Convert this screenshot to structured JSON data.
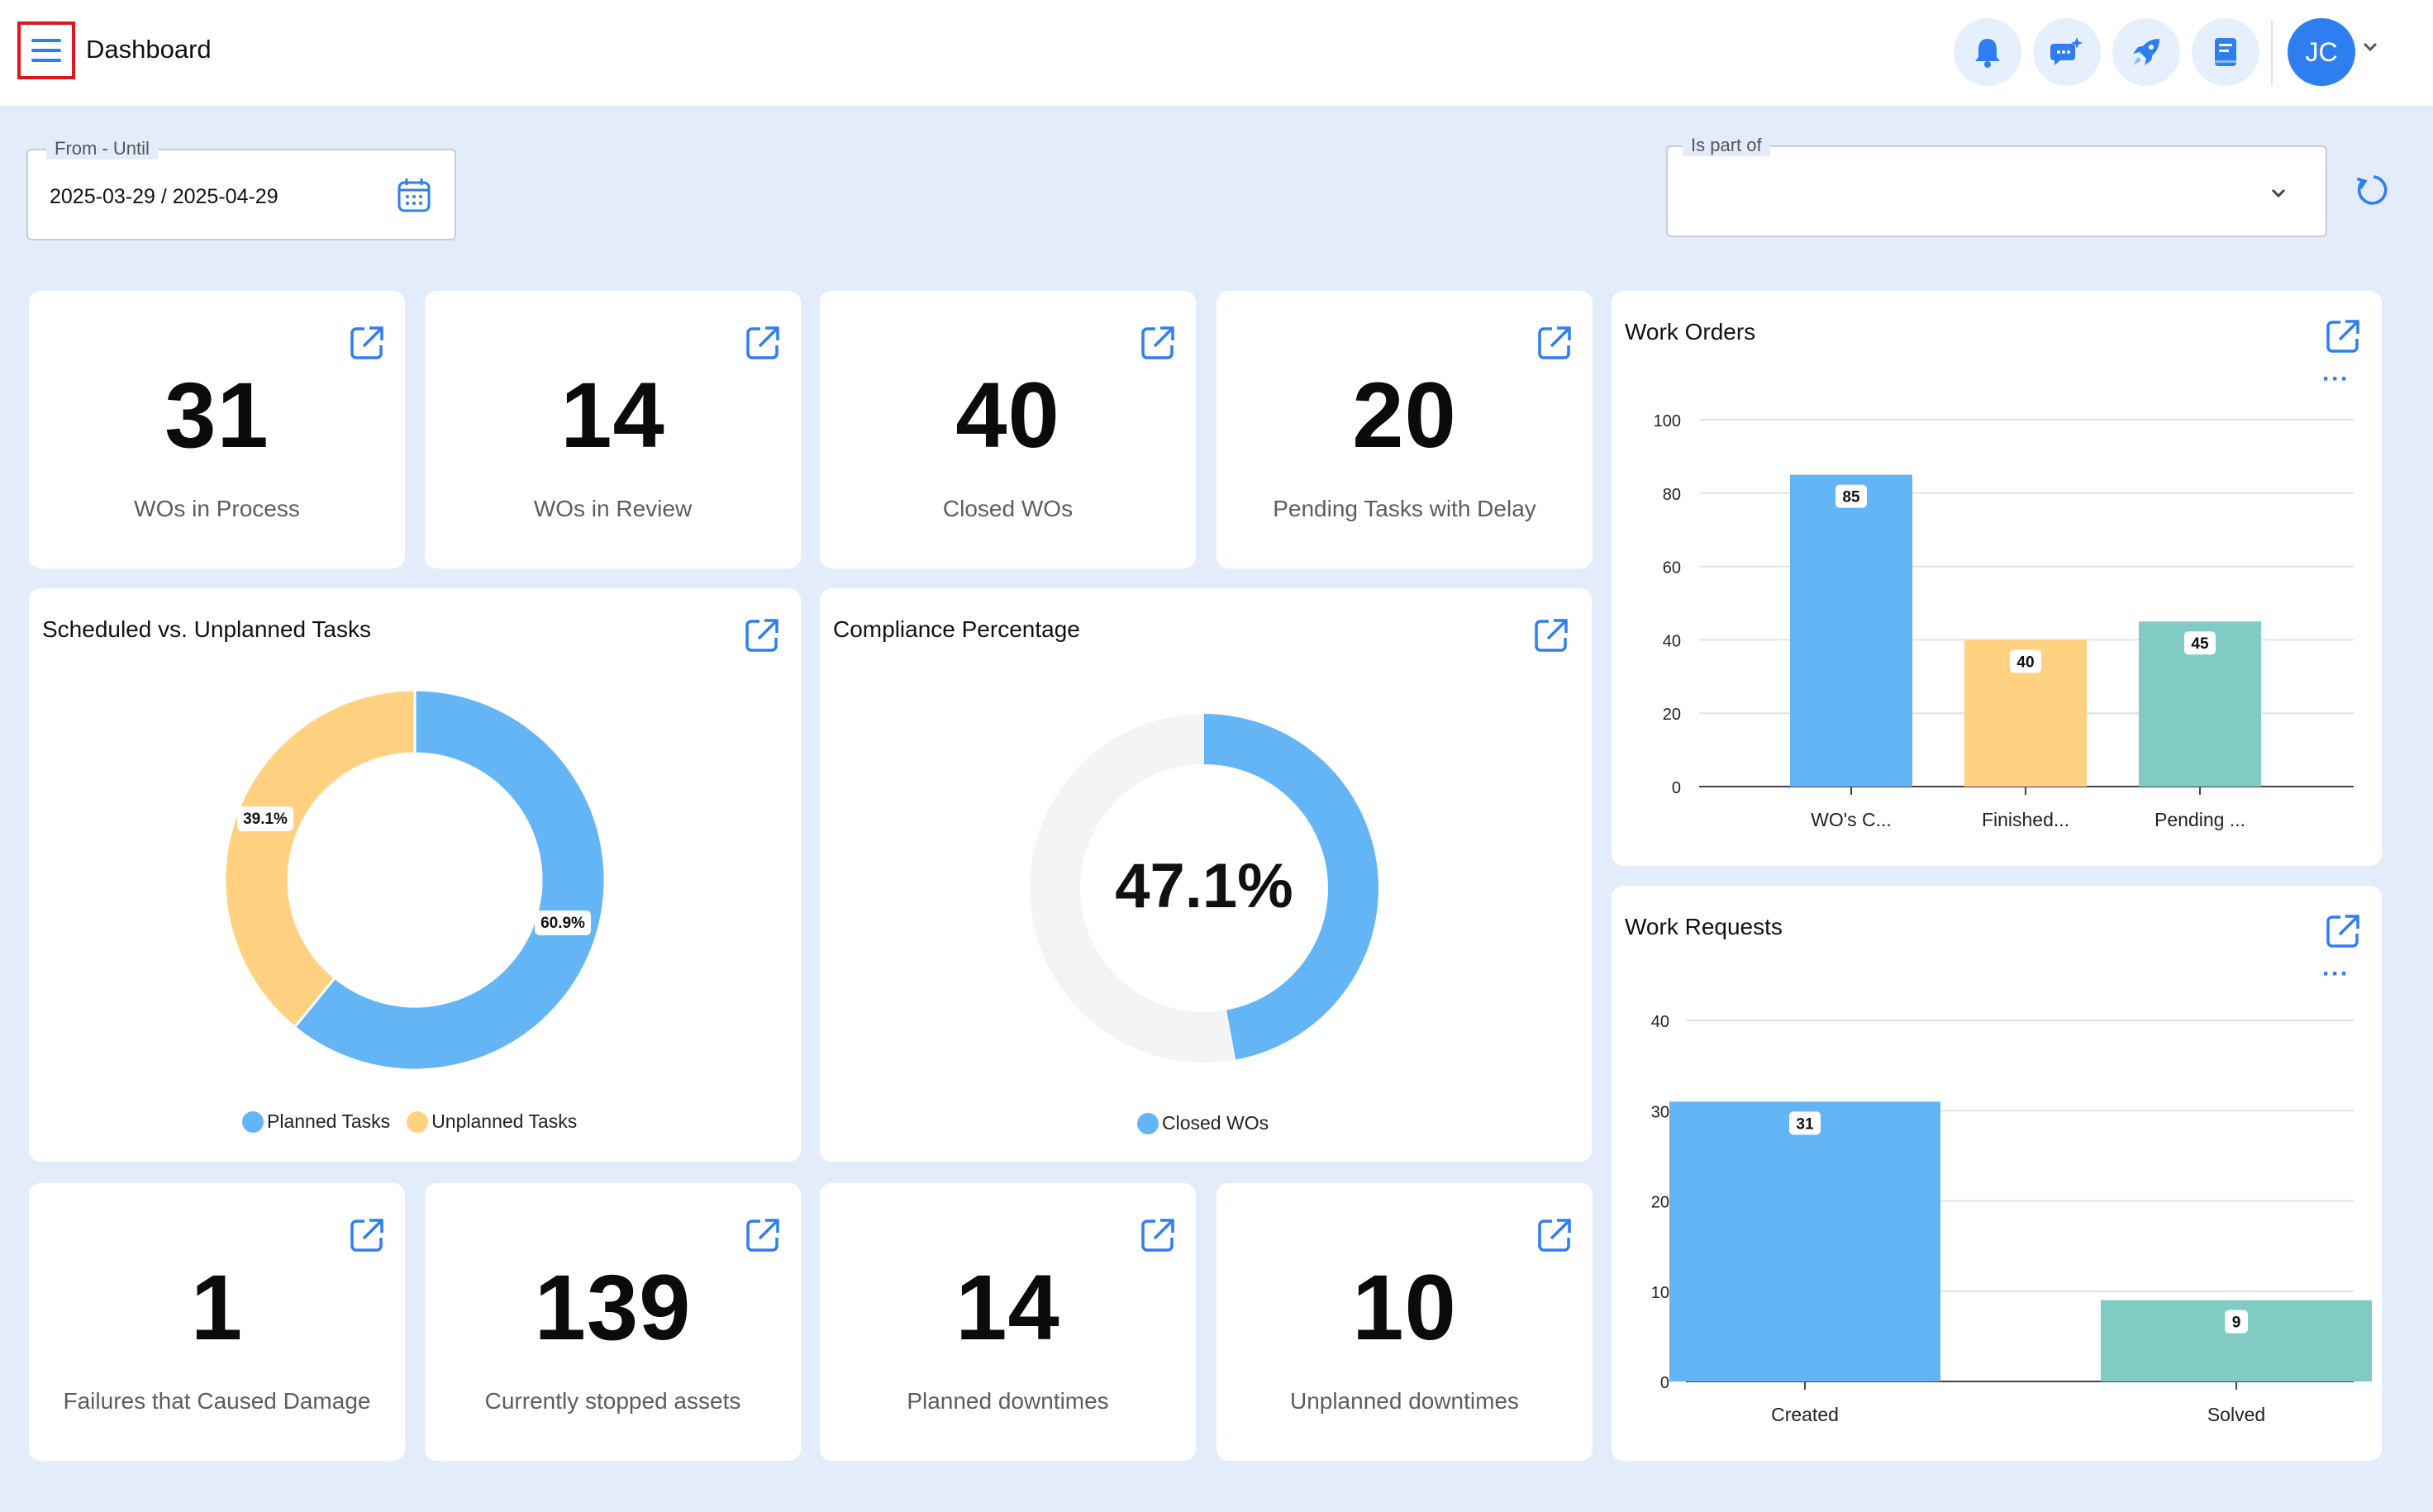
{
  "header": {
    "title": "Dashboard",
    "avatar_initials": "JC",
    "icons": [
      "menu-icon",
      "bell-icon",
      "chat-sparkle-icon",
      "rocket-icon",
      "book-icon",
      "chevron-down-icon"
    ]
  },
  "filters": {
    "date_label": "From - Until",
    "date_value": "2025-03-29 / 2025-04-29",
    "part_of_label": "Is part of",
    "part_of_value": ""
  },
  "kpis_top": [
    {
      "value": "31",
      "label": "WOs in Process"
    },
    {
      "value": "14",
      "label": "WOs in Review"
    },
    {
      "value": "40",
      "label": "Closed WOs"
    },
    {
      "value": "20",
      "label": "Pending Tasks with Delay"
    }
  ],
  "kpis_bottom": [
    {
      "value": "1",
      "label": "Failures that Caused Damage"
    },
    {
      "value": "139",
      "label": "Currently stopped assets"
    },
    {
      "value": "14",
      "label": "Planned downtimes"
    },
    {
      "value": "10",
      "label": "Unplanned downtimes"
    }
  ],
  "colors": {
    "blue": "#64b5f6",
    "yellow": "#ffd180",
    "teal": "#80cbc4",
    "accent": "#2f7ef0",
    "track": "#f4f4f4"
  },
  "chart_data": [
    {
      "type": "pie",
      "title": "Scheduled vs. Unplanned Tasks",
      "categories": [
        "Planned Tasks",
        "Unplanned Tasks"
      ],
      "values": [
        60.9,
        39.1
      ],
      "labels": [
        "60.9%",
        "39.1%"
      ],
      "legend_position": "bottom"
    },
    {
      "type": "pie",
      "title": "Compliance Percentage",
      "categories": [
        "Closed WOs"
      ],
      "values": [
        47.1
      ],
      "center_label": "47.1%",
      "legend_position": "bottom"
    },
    {
      "type": "bar",
      "title": "Work Orders",
      "categories": [
        "WO's C...",
        "Finished...",
        "Pending ..."
      ],
      "values": [
        85,
        40,
        45
      ],
      "ylim": [
        0,
        100
      ],
      "yticks": [
        "0",
        "20",
        "40",
        "60",
        "80",
        "100"
      ],
      "grid": true
    },
    {
      "type": "bar",
      "title": "Work Requests",
      "categories": [
        "Created",
        "Solved"
      ],
      "values": [
        31,
        9
      ],
      "ylim": [
        0,
        40
      ],
      "yticks": [
        "0",
        "10",
        "20",
        "30",
        "40"
      ],
      "grid": true
    }
  ]
}
